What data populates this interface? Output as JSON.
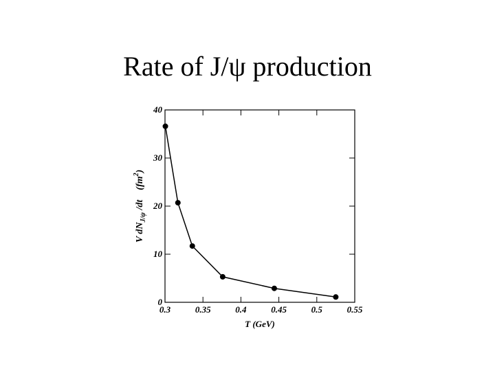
{
  "chart_data": {
    "type": "line",
    "title": "Rate of J/ψ production",
    "x_label": "T (GeV)",
    "y_label": [
      "V  dN",
      "J/ψ",
      " /dt    (fm",
      "2",
      ")"
    ],
    "x": [
      0.3005,
      0.317,
      0.336,
      0.376,
      0.444,
      0.525
    ],
    "values": [
      36.6,
      20.7,
      11.7,
      5.3,
      2.9,
      1.1
    ],
    "color": "#000000",
    "xlim": [
      0.3,
      0.55
    ],
    "xticks": [
      0.3,
      0.35,
      0.4,
      0.45,
      0.5,
      0.55
    ],
    "ylim": [
      0,
      40
    ],
    "yticks": [
      0,
      10,
      20,
      30,
      40
    ]
  }
}
